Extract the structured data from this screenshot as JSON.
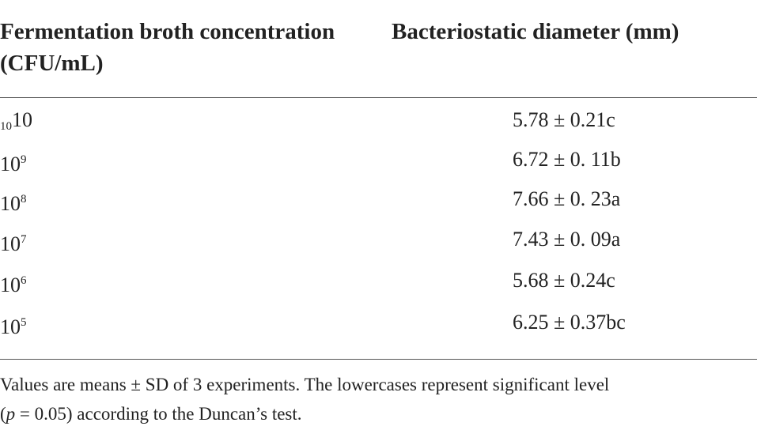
{
  "table": {
    "header": [
      "Fermentation broth concentration (CFU/mL)",
      "Bacteriostatic diameter (mm)"
    ],
    "rows": [
      [
        {
          "sub": "10",
          "base": "10"
        },
        "5.78 ± 0.21c"
      ],
      [
        {
          "base": "10",
          "sup": "9"
        },
        "6.72 ± 0. 11b"
      ],
      [
        {
          "base": "10",
          "sup": "8"
        },
        "7.66 ± 0. 23a"
      ],
      [
        {
          "base": "10",
          "sup": "7"
        },
        "7.43 ± 0. 09a"
      ],
      [
        {
          "base": "10",
          "sup": "6"
        },
        "5.68 ± 0.24c"
      ],
      [
        {
          "base": "10",
          "sup": "5"
        },
        "6.25 ± 0.37bc"
      ]
    ],
    "footnote": [
      "Values are means ± SD of 3 experiments. The lowercases represent significant level",
      "(",
      "p",
      " = 0.05) according to the Duncan’s test."
    ]
  }
}
